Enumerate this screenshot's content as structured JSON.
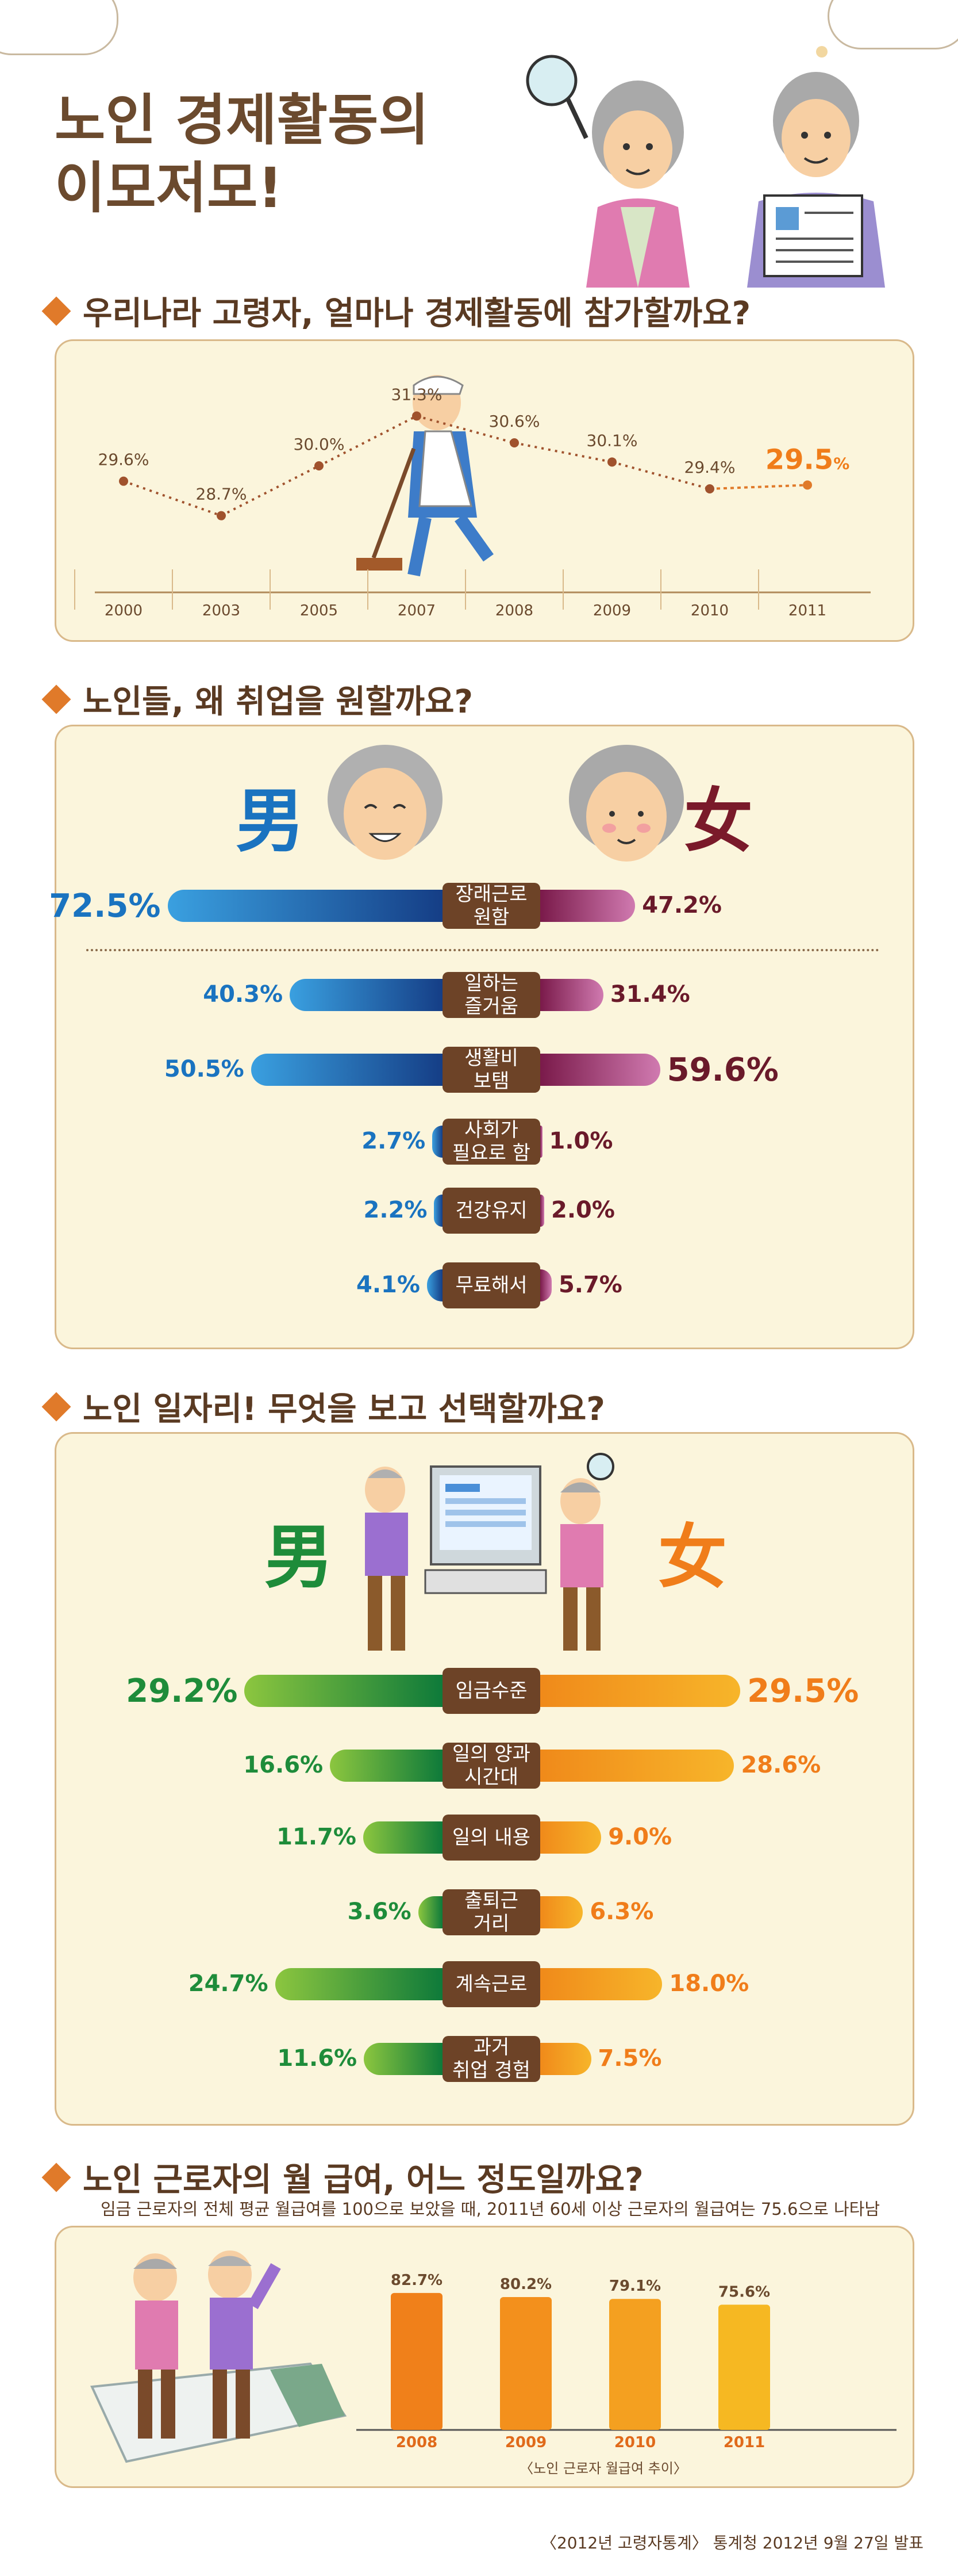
{
  "title_line1": "노인 경제활동의",
  "title_line2": "이모저모!",
  "section1": {
    "heading": "우리나라 고령자, 얼마나 경제활동에 참가할까요?",
    "chart_data": {
      "type": "line",
      "categories": [
        "2000",
        "2003",
        "2005",
        "2007",
        "2008",
        "2009",
        "2010",
        "2011"
      ],
      "values": [
        29.6,
        28.7,
        30.0,
        31.3,
        30.6,
        30.1,
        29.4,
        29.5
      ],
      "labels": [
        "29.6%",
        "28.7%",
        "30.0%",
        "31.3%",
        "30.6%",
        "30.1%",
        "29.4%",
        "29.5"
      ],
      "last_unit": "%",
      "ylim": [
        28.5,
        31.5
      ]
    }
  },
  "section2": {
    "heading": "노인들, 왜 취업을 원할까요?",
    "male": "男",
    "female": "女",
    "chart_data": {
      "type": "bar",
      "categories": [
        "장래근로\n원함",
        "일하는\n즐거움",
        "생활비\n보탬",
        "사회가\n필요로 함",
        "건강유지",
        "무료해서"
      ],
      "series": [
        {
          "name": "男",
          "values": [
            72.5,
            40.3,
            50.5,
            2.7,
            2.2,
            4.1
          ],
          "labels": [
            "72.5%",
            "40.3%",
            "50.5%",
            "2.7%",
            "2.2%",
            "4.1%"
          ]
        },
        {
          "name": "女",
          "values": [
            47.2,
            31.4,
            59.6,
            1.0,
            2.0,
            5.7
          ],
          "labels": [
            "47.2%",
            "31.4%",
            "59.6%",
            "1.0%",
            "2.0%",
            "5.7%"
          ]
        }
      ],
      "colors": {
        "male": "#1a5fa8",
        "female": "#8b2a55"
      }
    }
  },
  "section3": {
    "heading": "노인 일자리! 무엇을 보고 선택할까요?",
    "male": "男",
    "female": "女",
    "chart_data": {
      "type": "bar",
      "categories": [
        "임금수준",
        "일의 양과\n시간대",
        "일의 내용",
        "출퇴근\n거리",
        "계속근로",
        "과거\n취업 경험"
      ],
      "series": [
        {
          "name": "男",
          "values": [
            29.2,
            16.6,
            11.7,
            3.6,
            24.7,
            11.6
          ],
          "labels": [
            "29.2%",
            "16.6%",
            "11.7%",
            "3.6%",
            "24.7%",
            "11.6%"
          ]
        },
        {
          "name": "女",
          "values": [
            29.5,
            28.6,
            9.0,
            6.3,
            18.0,
            7.5
          ],
          "labels": [
            "29.5%",
            "28.6%",
            "9.0%",
            "6.3%",
            "18.0%",
            "7.5%"
          ]
        }
      ],
      "colors": {
        "male": "#1e8c3a",
        "female": "#f07d1a"
      }
    }
  },
  "section4": {
    "heading": "노인 근로자의 월 급여, 어느 정도일까요?",
    "subtitle": "임금 근로자의 전체 평균 월급여를 100으로 보았을 때, 2011년 60세 이상 근로자의 월급여는 75.6으로 나타남",
    "chart_data": {
      "type": "bar",
      "categories": [
        "2008",
        "2009",
        "2010",
        "2011"
      ],
      "values": [
        82.7,
        80.2,
        79.1,
        75.6
      ],
      "labels": [
        "82.7%",
        "80.2%",
        "79.1%",
        "75.6%"
      ],
      "caption": "〈노인 근로자 월급여 추이〉",
      "ylim": [
        0,
        100
      ]
    }
  },
  "source": "〈2012년 고령자통계〉 통계청 2012년 9월 27일 발표",
  "colors": {
    "accent": "#e07a2a",
    "panel": "#fbf5dc",
    "border": "#d9b98a",
    "label_bg": "#6d4327"
  }
}
